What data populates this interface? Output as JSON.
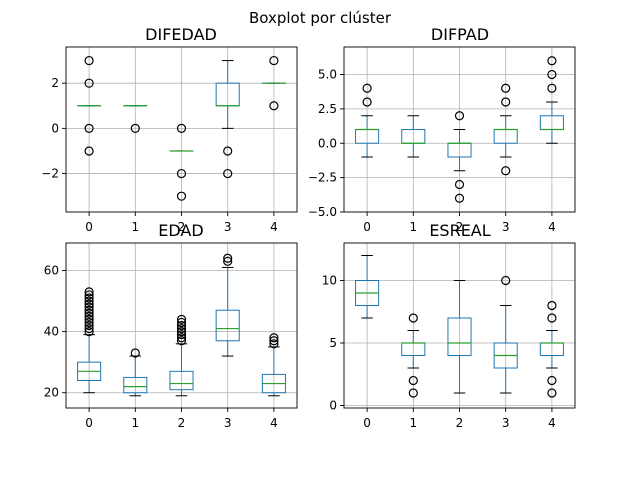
{
  "figure": {
    "suptitle": "Boxplot por clúster"
  },
  "style": {
    "box_color": "#1f77b4",
    "median_color": "#2ca02c",
    "grid_color": "#b0b0b0",
    "flier_color": "#000000"
  },
  "chart_data": [
    {
      "type": "boxplot",
      "title": "DIFEDAD",
      "categories": [
        "0",
        "1",
        "2",
        "3",
        "4"
      ],
      "ylim": [
        -3.7,
        3.6
      ],
      "yticks": [
        -2,
        0,
        2
      ],
      "ytick_labels": [
        "−2",
        "0",
        "2"
      ],
      "grid": true,
      "boxes": [
        {
          "q1": 1,
          "median": 1,
          "q3": 1,
          "whislo": 1,
          "whishi": 1,
          "fliers": [
            3,
            2,
            0,
            -1
          ]
        },
        {
          "q1": 1,
          "median": 1,
          "q3": 1,
          "whislo": 1,
          "whishi": 1,
          "fliers": [
            0
          ]
        },
        {
          "q1": -1,
          "median": -1,
          "q3": -1,
          "whislo": -1,
          "whishi": -1,
          "fliers": [
            0,
            -2,
            -3
          ]
        },
        {
          "q1": 1,
          "median": 1,
          "q3": 2,
          "whislo": 0,
          "whishi": 3,
          "fliers": [
            -1,
            -2
          ]
        },
        {
          "q1": 2,
          "median": 2,
          "q3": 2,
          "whislo": 2,
          "whishi": 2,
          "fliers": [
            3,
            1
          ]
        }
      ]
    },
    {
      "type": "boxplot",
      "title": "DIFPAD",
      "categories": [
        "0",
        "1",
        "2",
        "3",
        "4"
      ],
      "ylim": [
        -5,
        7
      ],
      "yticks": [
        -5,
        -2.5,
        0,
        2.5,
        5
      ],
      "ytick_labels": [
        "−5.0",
        "−2.5",
        "0.0",
        "2.5",
        "5.0"
      ],
      "grid": true,
      "boxes": [
        {
          "q1": 0,
          "median": 1,
          "q3": 1,
          "whislo": -1,
          "whishi": 2,
          "fliers": [
            3,
            4
          ]
        },
        {
          "q1": 0,
          "median": 0,
          "q3": 1,
          "whislo": -1,
          "whishi": 2,
          "fliers": []
        },
        {
          "q1": -1,
          "median": 0,
          "q3": 0,
          "whislo": -2,
          "whishi": 1,
          "fliers": [
            2,
            -3,
            -4
          ]
        },
        {
          "q1": 0,
          "median": 1,
          "q3": 1,
          "whislo": -1,
          "whishi": 2,
          "fliers": [
            3,
            4,
            -2
          ]
        },
        {
          "q1": 1,
          "median": 1,
          "q3": 2,
          "whislo": 0,
          "whishi": 3,
          "fliers": [
            4,
            5,
            6
          ]
        }
      ]
    },
    {
      "type": "boxplot",
      "title": "EDAD",
      "categories": [
        "0",
        "1",
        "2",
        "3",
        "4"
      ],
      "ylim": [
        15,
        69
      ],
      "yticks": [
        20,
        40,
        60
      ],
      "ytick_labels": [
        "20",
        "40",
        "60"
      ],
      "grid": true,
      "boxes": [
        {
          "q1": 24,
          "median": 27,
          "q3": 30,
          "whislo": 20,
          "whishi": 39,
          "fliers": [
            40,
            41,
            42,
            43,
            44,
            45,
            46,
            47,
            48,
            49,
            50,
            51,
            52,
            53
          ]
        },
        {
          "q1": 20,
          "median": 22,
          "q3": 25,
          "whislo": 19,
          "whishi": 32,
          "fliers": [
            33
          ]
        },
        {
          "q1": 21,
          "median": 23,
          "q3": 27,
          "whislo": 19,
          "whishi": 36,
          "fliers": [
            37,
            38,
            39,
            40,
            41,
            42,
            43,
            44
          ]
        },
        {
          "q1": 37,
          "median": 41,
          "q3": 47,
          "whislo": 32,
          "whishi": 61,
          "fliers": [
            63,
            64
          ]
        },
        {
          "q1": 20,
          "median": 23,
          "q3": 26,
          "whislo": 19,
          "whishi": 35,
          "fliers": [
            36,
            37,
            38
          ]
        }
      ]
    },
    {
      "type": "boxplot",
      "title": "ESREAL",
      "categories": [
        "0",
        "1",
        "2",
        "3",
        "4"
      ],
      "ylim": [
        -0.2,
        13
      ],
      "yticks": [
        0,
        5,
        10
      ],
      "ytick_labels": [
        "0",
        "5",
        "10"
      ],
      "grid": true,
      "boxes": [
        {
          "q1": 8,
          "median": 9,
          "q3": 10,
          "whislo": 7,
          "whishi": 12,
          "fliers": []
        },
        {
          "q1": 4,
          "median": 5,
          "q3": 5,
          "whislo": 3,
          "whishi": 6,
          "fliers": [
            7,
            2,
            1
          ]
        },
        {
          "q1": 4,
          "median": 5,
          "q3": 7,
          "whislo": 1,
          "whishi": 10,
          "fliers": []
        },
        {
          "q1": 3,
          "median": 4,
          "q3": 5,
          "whislo": 1,
          "whishi": 8,
          "fliers": [
            10
          ]
        },
        {
          "q1": 4,
          "median": 5,
          "q3": 5,
          "whislo": 3,
          "whishi": 6,
          "fliers": [
            7,
            8,
            2,
            1
          ]
        }
      ]
    }
  ]
}
